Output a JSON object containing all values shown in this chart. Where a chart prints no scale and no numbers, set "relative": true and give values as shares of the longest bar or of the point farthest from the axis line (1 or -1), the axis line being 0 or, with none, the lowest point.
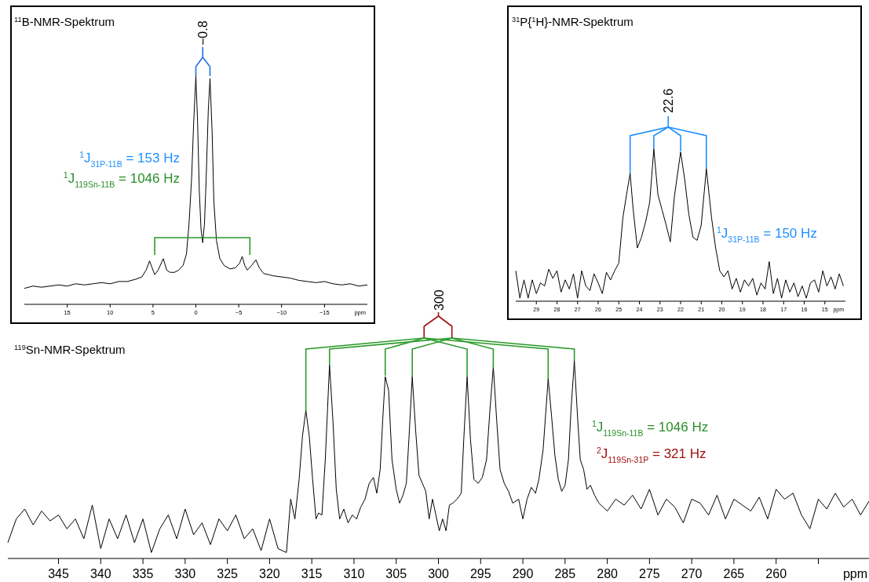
{
  "chart_data": [
    {
      "type": "line",
      "title": "$^{11}$B-NMR-Spektrum",
      "xlabel": "ppm",
      "relative": true,
      "color": "#000000",
      "xlim": [
        20,
        -20
      ],
      "xticks": [
        15,
        10,
        5,
        0,
        {
          "value": -5,
          "label": "−5"
        },
        {
          "value": -10,
          "label": "−10"
        },
        {
          "value": -15,
          "label": "−15"
        }
      ],
      "annotations": [
        "−0.8",
        "$^{1}$J$_{31P-11B}$ = 153 Hz",
        "$^{1}$J$_{119Sn-11B}$ = 1046 Hz"
      ],
      "x": [
        20,
        19,
        18,
        17,
        16,
        15,
        14,
        13,
        12,
        11,
        10,
        9,
        8,
        7,
        6.3,
        5.8,
        5.4,
        5.1,
        4.8,
        4.4,
        3.8,
        3.4,
        3.0,
        2.5,
        2.0,
        1.5,
        1.1,
        0.8,
        0.5,
        0.25,
        0,
        -0.2,
        -0.4,
        -0.6,
        -0.8,
        -1.0,
        -1.2,
        -1.45,
        -1.65,
        -1.9,
        -2.1,
        -2.4,
        -2.8,
        -3.3,
        -4,
        -4.6,
        -5.1,
        -5.4,
        -5.7,
        -6.0,
        -6.5,
        -7,
        -7.4,
        -7.9,
        -8.5,
        -9,
        -10,
        -11,
        -12,
        -13,
        -14,
        -15,
        -16,
        -17,
        -18,
        -19,
        -20
      ],
      "values": [
        0.07,
        0.08,
        0.075,
        0.08,
        0.085,
        0.08,
        0.09,
        0.085,
        0.09,
        0.095,
        0.09,
        0.1,
        0.1,
        0.11,
        0.12,
        0.15,
        0.19,
        0.16,
        0.13,
        0.15,
        0.2,
        0.15,
        0.14,
        0.14,
        0.15,
        0.17,
        0.22,
        0.35,
        0.55,
        0.8,
        1,
        0.8,
        0.5,
        0.33,
        0.27,
        0.35,
        0.55,
        0.85,
        0.99,
        0.75,
        0.45,
        0.28,
        0.2,
        0.17,
        0.155,
        0.16,
        0.18,
        0.21,
        0.17,
        0.15,
        0.17,
        0.195,
        0.16,
        0.135,
        0.13,
        0.125,
        0.12,
        0.115,
        0.105,
        0.1,
        0.095,
        0.1,
        0.09,
        0.085,
        0.09,
        0.08,
        0.085
      ]
    },
    {
      "type": "line",
      "title": "$^{31}$P{$^{1}$H}-NMR-Spektrum",
      "xlabel": "ppm",
      "relative": true,
      "color": "#000000",
      "xlim": [
        30,
        14
      ],
      "xticks": [
        29,
        28,
        27,
        26,
        25,
        24,
        23,
        22,
        21,
        20,
        19,
        18,
        17,
        16,
        15
      ],
      "annotations": [
        "22.6",
        "$^{1}$J$_{31P-11B}$ = 150 Hz"
      ],
      "x": [
        30,
        29.8,
        29.6,
        29.4,
        29.2,
        29.0,
        28.8,
        28.6,
        28.4,
        28.2,
        28.0,
        27.8,
        27.6,
        27.4,
        27.2,
        27.0,
        26.8,
        26.6,
        26.4,
        26.2,
        26.0,
        25.8,
        25.6,
        25.4,
        25.2,
        25.0,
        24.8,
        24.6,
        24.45,
        24.3,
        24.1,
        23.9,
        23.7,
        23.5,
        23.3,
        23.1,
        22.9,
        22.7,
        22.5,
        22.3,
        22.0,
        21.8,
        21.6,
        21.4,
        21.2,
        21.0,
        20.75,
        20.5,
        20.3,
        20.1,
        19.9,
        19.7,
        19.5,
        19.3,
        19.1,
        18.9,
        18.7,
        18.5,
        18.3,
        18.1,
        17.9,
        17.7,
        17.5,
        17.3,
        17.1,
        16.9,
        16.7,
        16.5,
        16.3,
        16.1,
        15.9,
        15.7,
        15.5,
        15.3,
        15.1,
        14.9,
        14.7,
        14.5,
        14.3,
        14.1
      ],
      "values": [
        0.2,
        0.02,
        0.14,
        0.02,
        0.14,
        0.05,
        0.12,
        0.1,
        0.21,
        0.15,
        0.2,
        0.06,
        0.14,
        0.08,
        0.18,
        0.02,
        0.2,
        0.1,
        0.07,
        0.18,
        0.12,
        0.05,
        0.19,
        0.14,
        0.2,
        0.25,
        0.55,
        0.72,
        0.84,
        0.6,
        0.35,
        0.42,
        0.52,
        0.65,
        1.0,
        0.7,
        0.6,
        0.5,
        0.39,
        0.69,
        0.98,
        0.8,
        0.57,
        0.42,
        0.4,
        0.5,
        0.87,
        0.55,
        0.35,
        0.2,
        0.16,
        0.2,
        0.08,
        0.15,
        0.06,
        0.14,
        0.1,
        0.15,
        0.04,
        0.12,
        0.08,
        0.26,
        0.05,
        0.15,
        0.02,
        0.14,
        0.06,
        0.12,
        0.03,
        0.1,
        0.02,
        0.12,
        0.14,
        0.06,
        0.2,
        0.1,
        0.16,
        0.08,
        0.18,
        0.1
      ]
    },
    {
      "type": "line",
      "title": "$^{119}$Sn-NMR-Spektrum",
      "xlabel": "ppm",
      "relative": true,
      "color": "#000000",
      "xlim": [
        351,
        249
      ],
      "xticks": [
        345,
        340,
        335,
        330,
        325,
        320,
        315,
        310,
        305,
        300,
        295,
        290,
        285,
        280,
        275,
        270,
        265,
        260,
        {
          "value": 255,
          "label": null
        }
      ],
      "annotations": [
        "300",
        "$^{1}$J$_{119Sn-11B}$ = 1046 Hz",
        "$^{2}$J$_{119Sn-31P}$ = 321 Hz"
      ],
      "x": [
        351,
        350,
        349,
        348,
        347,
        346,
        345,
        344,
        343,
        342,
        341,
        340,
        339,
        338,
        337,
        336,
        335,
        334,
        333,
        332,
        331,
        330,
        329,
        328,
        327,
        326,
        325,
        324,
        323,
        322,
        321,
        320,
        319,
        318,
        317.5,
        317,
        316.5,
        316.1,
        315.7,
        315.3,
        314.9,
        314.5,
        314.2,
        313.8,
        313.4,
        312.9,
        312.5,
        312.1,
        311.7,
        311.2,
        310.7,
        310.2,
        309.7,
        309.2,
        308.7,
        308.2,
        307.7,
        307.3,
        306.9,
        306.6,
        306.3,
        305.9,
        305.5,
        305.0,
        304.6,
        304.2,
        303.8,
        303.5,
        303.1,
        302.7,
        302.3,
        301.9,
        301.5,
        301.1,
        300.7,
        300.3,
        299.9,
        299.5,
        299.1,
        298.7,
        298.3,
        297.8,
        297.3,
        297.0,
        296.6,
        296.2,
        295.8,
        295.3,
        294.8,
        294.3,
        293.9,
        293.5,
        293.1,
        292.7,
        292.2,
        291.7,
        291.2,
        290.5,
        290.0,
        289.5,
        289.0,
        288.5,
        288.1,
        287.6,
        287.0,
        286.6,
        286.2,
        285.8,
        285.4,
        285.0,
        284.6,
        284.3,
        283.9,
        283.5,
        283.2,
        282.8,
        282.4,
        282.0,
        281.5,
        281.0,
        280.5,
        280,
        279,
        278,
        277,
        276,
        275,
        274,
        273,
        272,
        271,
        270,
        269,
        268,
        267,
        266,
        265,
        264,
        263,
        262,
        261,
        260,
        259,
        258,
        257,
        256,
        255,
        254,
        253,
        252,
        251,
        250,
        249
      ],
      "values": [
        0.08,
        0.2,
        0.25,
        0.17,
        0.24,
        0.19,
        0.22,
        0.15,
        0.2,
        0.1,
        0.27,
        0.05,
        0.2,
        0.1,
        0.22,
        0.08,
        0.2,
        0.03,
        0.15,
        0.22,
        0.1,
        0.25,
        0.12,
        0.18,
        0.07,
        0.2,
        0.14,
        0.22,
        0.1,
        0.15,
        0.04,
        0.2,
        0.05,
        0.03,
        0.3,
        0.2,
        0.4,
        0.62,
        0.75,
        0.62,
        0.4,
        0.2,
        0.23,
        0.22,
        0.5,
        0.98,
        0.7,
        0.35,
        0.2,
        0.25,
        0.18,
        0.22,
        0.2,
        0.26,
        0.3,
        0.38,
        0.41,
        0.33,
        0.45,
        0.7,
        0.92,
        0.85,
        0.5,
        0.35,
        0.28,
        0.32,
        0.38,
        0.6,
        0.92,
        0.65,
        0.42,
        0.38,
        0.34,
        0.2,
        0.3,
        0.22,
        0.14,
        0.2,
        0.14,
        0.27,
        0.28,
        0.3,
        0.33,
        0.6,
        0.92,
        0.6,
        0.4,
        0.38,
        0.41,
        0.5,
        0.75,
        0.97,
        0.7,
        0.45,
        0.38,
        0.34,
        0.28,
        0.3,
        0.2,
        0.3,
        0.36,
        0.33,
        0.4,
        0.55,
        0.91,
        0.72,
        0.52,
        0.4,
        0.34,
        0.37,
        0.5,
        0.75,
        1,
        0.7,
        0.5,
        0.45,
        0.35,
        0.37,
        0.32,
        0.28,
        0.26,
        0.24,
        0.3,
        0.27,
        0.32,
        0.25,
        0.35,
        0.22,
        0.3,
        0.26,
        0.18,
        0.3,
        0.28,
        0.22,
        0.32,
        0.2,
        0.3,
        0.27,
        0.24,
        0.31,
        0.2,
        0.35,
        0.3,
        0.33,
        0.22,
        0.15,
        0.3,
        0.25,
        0.33,
        0.26,
        0.3,
        0.22,
        0.29
      ]
    }
  ]
}
